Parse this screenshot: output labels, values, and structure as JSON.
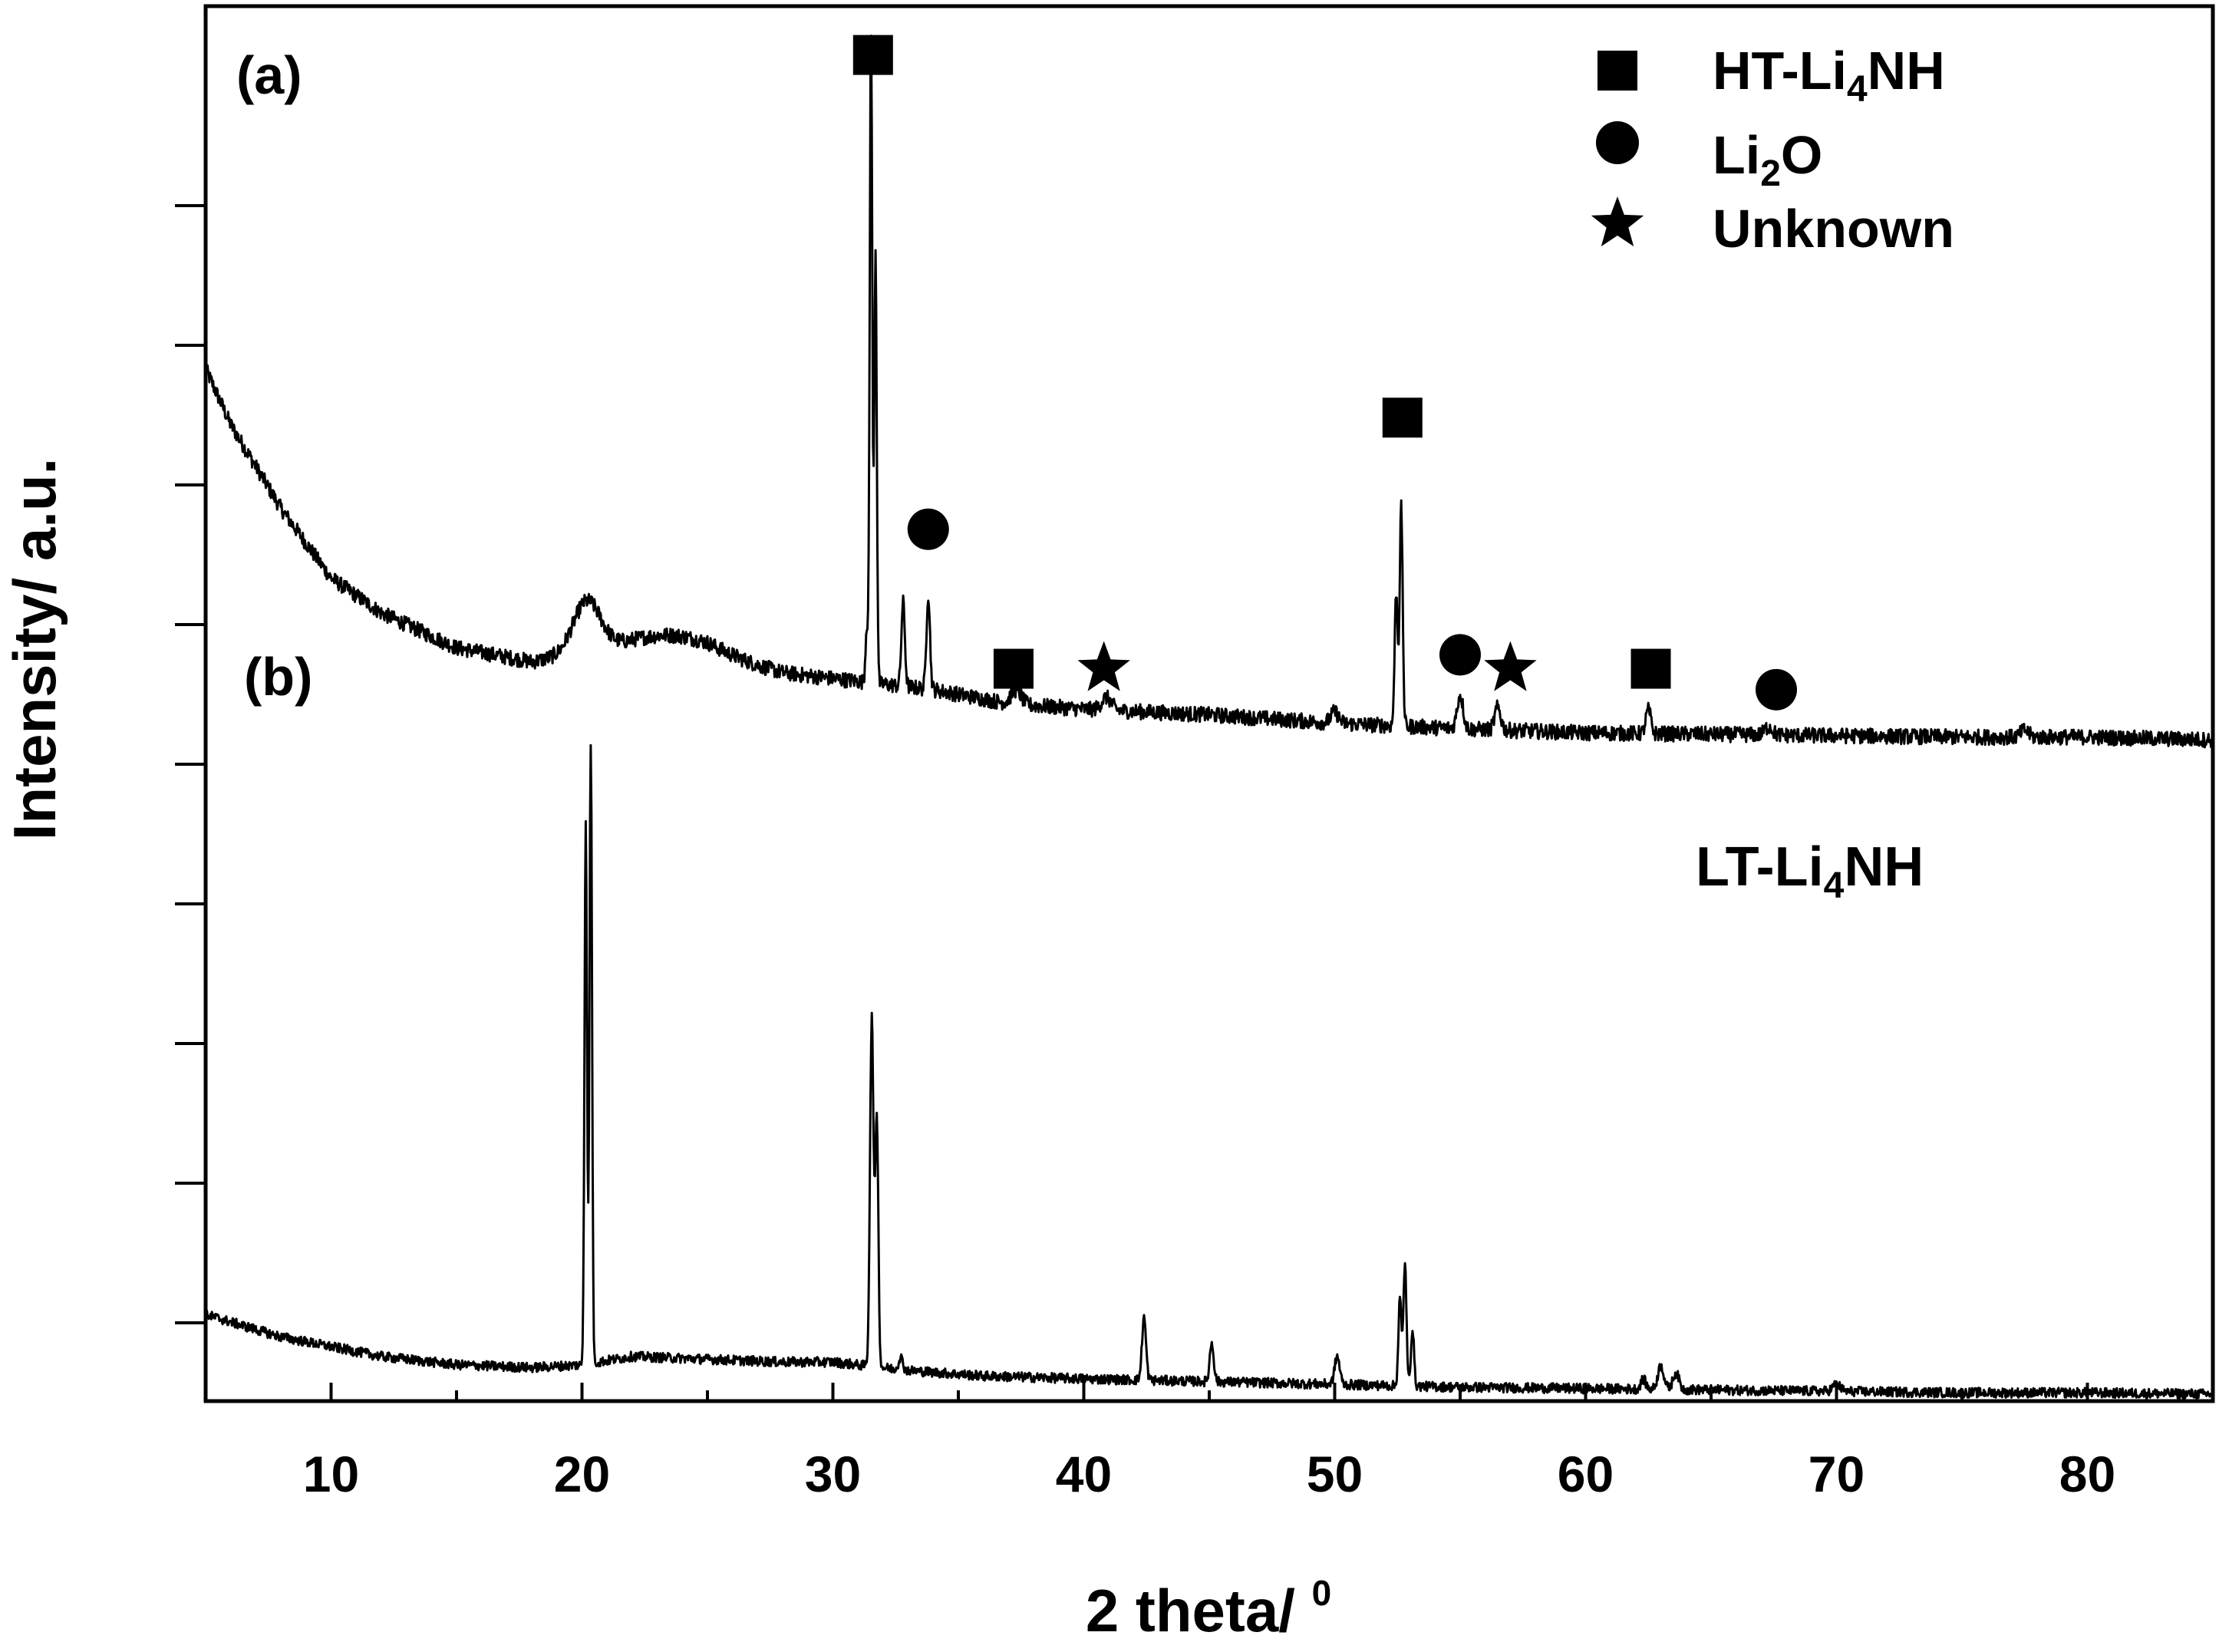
{
  "chart_data": {
    "type": "line",
    "title": "",
    "xlabel": "2 theta/ ",
    "xlabel_superscript": "0",
    "ylabel": "Intensity/ a.u.",
    "xlim": [
      5,
      85
    ],
    "ylim": [
      0,
      100
    ],
    "grid": false,
    "x_ticks": [
      10,
      20,
      30,
      40,
      50,
      60,
      70,
      80
    ],
    "y_tick_count": 9,
    "legend": {
      "placement": "top-right",
      "entries": [
        {
          "marker": "square",
          "text": "HT-Li",
          "sub": "4",
          "suffix": "NH"
        },
        {
          "marker": "circle",
          "text": "Li",
          "sub": "2",
          "suffix": "O"
        },
        {
          "marker": "star",
          "text": "Unknown",
          "sub": "",
          "suffix": ""
        }
      ]
    },
    "panel_labels": [
      "(a)",
      "(b)"
    ],
    "phase_label": {
      "text": "LT-Li",
      "sub": "4",
      "suffix": "NH"
    },
    "colors": {
      "line": "#000000",
      "background": "#ffffff"
    },
    "series": [
      {
        "id": "a",
        "baseline": [
          [
            5,
            74
          ],
          [
            6,
            70
          ],
          [
            8,
            64
          ],
          [
            10,
            59
          ],
          [
            12,
            56.5
          ],
          [
            15,
            54
          ],
          [
            18,
            53
          ],
          [
            20,
            53.6
          ],
          [
            22,
            53.8
          ],
          [
            25,
            53.6
          ],
          [
            28,
            52.2
          ],
          [
            30,
            51.8
          ],
          [
            31,
            51.6
          ],
          [
            34,
            51.0
          ],
          [
            37,
            50.0
          ],
          [
            40,
            49.6
          ],
          [
            45,
            49.2
          ],
          [
            50,
            48.6
          ],
          [
            55,
            48.2
          ],
          [
            60,
            47.9
          ],
          [
            65,
            47.8
          ],
          [
            70,
            47.7
          ],
          [
            75,
            47.6
          ],
          [
            80,
            47.6
          ],
          [
            85,
            47.4
          ]
        ],
        "peaks": [
          {
            "x": 20.2,
            "h": 3.6,
            "w": 0.55
          },
          {
            "x": 23.5,
            "h": 1.2,
            "w": 1.6
          },
          {
            "x": 31.35,
            "h": 4.0,
            "w": 0.05
          },
          {
            "x": 31.52,
            "h": 47.0,
            "w": 0.05
          },
          {
            "x": 31.7,
            "h": 31.0,
            "w": 0.05
          },
          {
            "x": 32.8,
            "h": 6.0,
            "w": 0.07
          },
          {
            "x": 33.8,
            "h": 6.8,
            "w": 0.07
          },
          {
            "x": 37.3,
            "h": 1.0,
            "w": 0.2
          },
          {
            "x": 40.9,
            "h": 0.9,
            "w": 0.2
          },
          {
            "x": 50.0,
            "h": 0.8,
            "w": 0.15
          },
          {
            "x": 52.45,
            "h": 9.6,
            "w": 0.06
          },
          {
            "x": 52.65,
            "h": 15.6,
            "w": 0.06
          },
          {
            "x": 55.0,
            "h": 2.4,
            "w": 0.12
          },
          {
            "x": 56.5,
            "h": 1.6,
            "w": 0.12
          },
          {
            "x": 62.5,
            "h": 1.7,
            "w": 0.1
          },
          {
            "x": 67.3,
            "h": 0.6,
            "w": 0.15
          },
          {
            "x": 77.5,
            "h": 0.5,
            "w": 0.15
          }
        ],
        "noise": 0.55
      },
      {
        "id": "b",
        "baseline": [
          [
            5,
            6.2
          ],
          [
            8,
            4.6
          ],
          [
            12,
            3.2
          ],
          [
            15,
            2.6
          ],
          [
            18,
            2.4
          ],
          [
            20,
            2.6
          ],
          [
            22,
            3.2
          ],
          [
            25,
            3.0
          ],
          [
            28,
            2.8
          ],
          [
            30,
            2.8
          ],
          [
            33,
            2.2
          ],
          [
            36,
            1.8
          ],
          [
            40,
            1.6
          ],
          [
            45,
            1.4
          ],
          [
            50,
            1.2
          ],
          [
            55,
            1.0
          ],
          [
            60,
            0.9
          ],
          [
            65,
            0.8
          ],
          [
            70,
            0.7
          ],
          [
            75,
            0.6
          ],
          [
            80,
            0.6
          ],
          [
            85,
            0.5
          ]
        ],
        "peaks": [
          {
            "x": 20.15,
            "h": 39.0,
            "w": 0.05
          },
          {
            "x": 20.35,
            "h": 44.5,
            "w": 0.05
          },
          {
            "x": 31.55,
            "h": 25.0,
            "w": 0.07
          },
          {
            "x": 31.75,
            "h": 18.0,
            "w": 0.06
          },
          {
            "x": 32.7,
            "h": 0.9,
            "w": 0.08
          },
          {
            "x": 42.4,
            "h": 4.5,
            "w": 0.08
          },
          {
            "x": 45.1,
            "h": 2.8,
            "w": 0.08
          },
          {
            "x": 50.1,
            "h": 2.0,
            "w": 0.1
          },
          {
            "x": 52.6,
            "h": 6.3,
            "w": 0.06
          },
          {
            "x": 52.8,
            "h": 8.8,
            "w": 0.06
          },
          {
            "x": 53.1,
            "h": 4.2,
            "w": 0.06
          },
          {
            "x": 62.3,
            "h": 0.7,
            "w": 0.1
          },
          {
            "x": 63.0,
            "h": 1.7,
            "w": 0.12
          },
          {
            "x": 63.6,
            "h": 1.2,
            "w": 0.12
          },
          {
            "x": 70.0,
            "h": 0.5,
            "w": 0.15
          }
        ],
        "noise": 0.35
      }
    ],
    "annotations": [
      {
        "marker": "square",
        "x": 31.6,
        "y": 96.5
      },
      {
        "marker": "circle",
        "x": 33.8,
        "y": 62.5
      },
      {
        "marker": "square",
        "x": 37.2,
        "y": 52.5
      },
      {
        "marker": "star",
        "x": 40.8,
        "y": 52.5
      },
      {
        "marker": "square",
        "x": 52.7,
        "y": 70.5
      },
      {
        "marker": "circle",
        "x": 55.0,
        "y": 53.5
      },
      {
        "marker": "star",
        "x": 57.0,
        "y": 52.5
      },
      {
        "marker": "square",
        "x": 62.6,
        "y": 52.5
      },
      {
        "marker": "circle",
        "x": 67.6,
        "y": 51.0
      }
    ]
  }
}
